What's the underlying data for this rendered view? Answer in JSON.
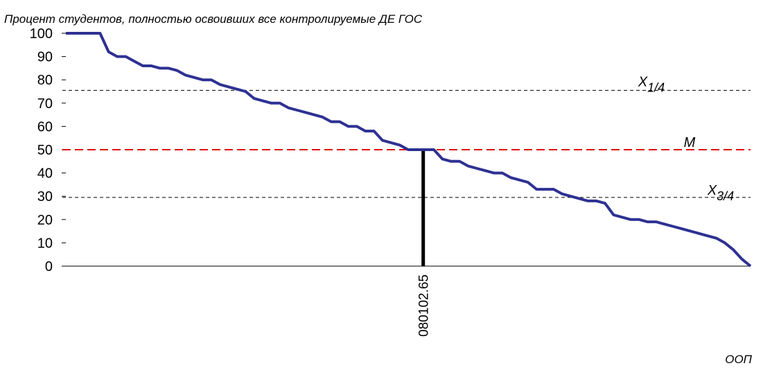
{
  "chart_data": {
    "type": "line",
    "title": "Процент студентов, полностью освоивших все контролируемые ДЕ ГОС",
    "x_label": "ООП",
    "categories": [
      null,
      null,
      null,
      null,
      null,
      null,
      null,
      null,
      null,
      null,
      null,
      null,
      null,
      null,
      null,
      null,
      null,
      null,
      null,
      null,
      null,
      null,
      null,
      null,
      null,
      null,
      null,
      null,
      null,
      null,
      null,
      null,
      null,
      null,
      null,
      null,
      null,
      null,
      null,
      null,
      null,
      null,
      "080102.65",
      null,
      null,
      null,
      null,
      null,
      null,
      null,
      null,
      null,
      null,
      null,
      null,
      null,
      null,
      null,
      null,
      null,
      null,
      null,
      null,
      null,
      null,
      null,
      null,
      null,
      null,
      null,
      null,
      null,
      null,
      null,
      null,
      null,
      null,
      null,
      null,
      null,
      null
    ],
    "series": [
      {
        "color": "#2e3192",
        "values": [
          100,
          100,
          100,
          100,
          100,
          92,
          90,
          90,
          88,
          86,
          86,
          85,
          85,
          84,
          82,
          81,
          80,
          80,
          78,
          77,
          76,
          75,
          72,
          71,
          70,
          70,
          68,
          67,
          66,
          65,
          64,
          62,
          62,
          60,
          60,
          58,
          58,
          54,
          53,
          52,
          50,
          50,
          50,
          50,
          46,
          45,
          45,
          43,
          42,
          41,
          40,
          40,
          38,
          37,
          36,
          33,
          33,
          33,
          31,
          30,
          29,
          28,
          28,
          27,
          22,
          21,
          20,
          20,
          19,
          19,
          18,
          17,
          16,
          15,
          14,
          13,
          12,
          10,
          7,
          3,
          0
        ]
      }
    ],
    "ylim": [
      0,
      100
    ],
    "yticks": [
      0,
      10,
      20,
      30,
      40,
      50,
      60,
      70,
      80,
      90,
      100
    ],
    "reference_lines": [
      {
        "name": "X",
        "sub": "1/4",
        "value": 75.5,
        "color": "#000000"
      },
      {
        "name": "M",
        "value": 50,
        "color": "#e01010"
      },
      {
        "name": "X",
        "sub": "3/4",
        "value": 29.5,
        "color": "#000000"
      }
    ]
  }
}
